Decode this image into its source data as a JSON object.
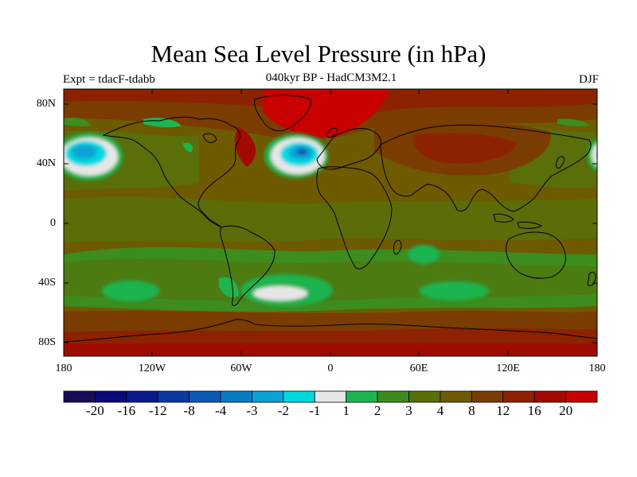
{
  "title": "Mean Sea Level Pressure (in hPa)",
  "experiment_label": "Expt = tdacF-tdabb",
  "subtitle": "040kyr BP - HadCM3M2.1",
  "season_label": "DJF",
  "lat_ticks": [
    "80N",
    "40N",
    "0",
    "40S",
    "80S"
  ],
  "lon_ticks": [
    "180",
    "120W",
    "60W",
    "0",
    "60E",
    "120E",
    "180"
  ],
  "colorbar": {
    "colors": [
      "#1a0a5a",
      "#0a0a78",
      "#0a1a8c",
      "#0a3aa0",
      "#0a5ab4",
      "#0a7ac4",
      "#0aa2d4",
      "#00d8e0",
      "#e6e6e6",
      "#1eb450",
      "#3c8c1e",
      "#5a6e0a",
      "#6e5a00",
      "#7a3c00",
      "#8c2200",
      "#a00a00",
      "#c80000"
    ],
    "tick_labels": [
      "-20",
      "-16",
      "-12",
      "-8",
      "-4",
      "-3",
      "-2",
      "-1",
      "1",
      "2",
      "3",
      "4",
      "8",
      "12",
      "16",
      "20"
    ]
  },
  "map": {
    "base_color": "#6e5a00",
    "ocean_dark_color": "#5a6e0a",
    "high_pressure_color": "#8c2200",
    "strong_high_color": "#c80000",
    "coast_color": "#000000"
  }
}
